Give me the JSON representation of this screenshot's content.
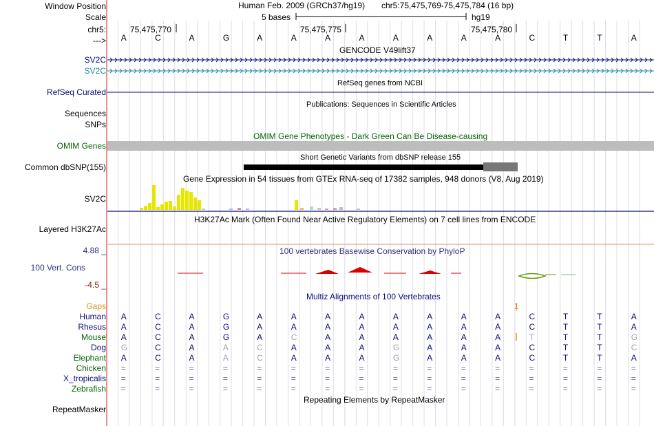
{
  "header": {
    "window_position_label": "Window Position",
    "scale_label": "Scale",
    "chrom_label": "chr5:",
    "strand_label": "--->",
    "assembly_text": "Human Feb. 2009 (GRCh37/hg19)",
    "position_text": "chr5:75,475,769-75,475,784 (16 bp)",
    "scale_text": "5 bases",
    "scale_db": "hg19",
    "ruler_ticks": [
      "75,475,770",
      "75,475,775",
      "75,475,780"
    ]
  },
  "bases": [
    "A",
    "C",
    "A",
    "G",
    "A",
    "A",
    "A",
    "A",
    "A",
    "A",
    "A",
    "A",
    "C",
    "T",
    "T",
    "A"
  ],
  "tracks": {
    "gencode": {
      "title": "GENCODE V49lift37",
      "genes": [
        "SV2C",
        "SV2C"
      ],
      "colors": [
        "#0c0c78",
        "#1a8aa8"
      ]
    },
    "refseq": {
      "title": "RefSeq genes from NCBI",
      "label": "RefSeq Curated"
    },
    "publications": {
      "title": "Publications: Sequences in Scientific Articles",
      "labels": [
        "Sequences",
        "SNPs"
      ]
    },
    "omim": {
      "title": "OMIM Gene Phenotypes - Dark Green Can Be Disease-causing",
      "label": "OMIM Genes",
      "color": "#006400"
    },
    "dbsnp": {
      "title": "Short Genetic Variants from dbSNP release 155",
      "label": "Common dbSNP(155)"
    },
    "gtex": {
      "title": "Gene Expression in 54 tissues from GTEx RNA-seq of 17382 samples, 948 donors (V8, Aug 2019)",
      "label": "SV2C"
    },
    "h3k27ac": {
      "title": "H3K27Ac Mark (Often Found Near Active Regulatory Elements) on 7 cell lines from ENCODE",
      "label": "Layered H3K27Ac"
    },
    "phylop": {
      "title": "100 vertebrates Basewise Conservation by PhyloP",
      "label": "100 Vert. Cons",
      "max": "4.88 _",
      "min": "-4.5 _"
    },
    "multiz": {
      "title": "Multiz Alignments of 100 Vertebrates",
      "gaps_label": "Gaps",
      "gap_value": "1",
      "species": [
        {
          "name": "Human",
          "seq": [
            "A",
            "C",
            "A",
            "G",
            "A",
            "A",
            "A",
            "A",
            "A",
            "A",
            "A",
            "A",
            "C",
            "T",
            "T",
            "A"
          ]
        },
        {
          "name": "Rhesus",
          "seq": [
            "A",
            "C",
            "A",
            "G",
            "A",
            "A",
            "A",
            "A",
            "A",
            "A",
            "A",
            "A",
            "C",
            "T",
            "T",
            "A"
          ]
        },
        {
          "name": "Mouse",
          "seq": [
            "A",
            "C",
            "A",
            "G",
            "A",
            "C",
            "A",
            "A",
            "A",
            "A",
            "A",
            "A",
            "T",
            "T",
            "T",
            "G"
          ]
        },
        {
          "name": "Dog",
          "seq": [
            "G",
            "C",
            "A",
            "A",
            "C",
            "A",
            "A",
            "A",
            "G",
            "A",
            "A",
            "A",
            "C",
            "T",
            "T",
            "C"
          ]
        },
        {
          "name": "Elephant",
          "seq": [
            "A",
            "C",
            "A",
            "A",
            "C",
            "A",
            "A",
            "A",
            "G",
            "A",
            "A",
            "A",
            "C",
            "T",
            "T",
            "A"
          ]
        },
        {
          "name": "Chicken",
          "seq": [
            "=",
            "=",
            "=",
            "=",
            "=",
            "=",
            "=",
            "=",
            "=",
            "=",
            "=",
            "=",
            "=",
            "=",
            "=",
            "="
          ]
        },
        {
          "name": "X_tropicalis",
          "seq": [
            "=",
            "=",
            "=",
            "=",
            "=",
            "=",
            "=",
            "=",
            "=",
            "=",
            "=",
            "=",
            "=",
            "=",
            "=",
            "="
          ]
        },
        {
          "name": "Zebrafish",
          "seq": [
            "=",
            "=",
            "=",
            "=",
            "=",
            "=",
            "=",
            "=",
            "=",
            "=",
            "=",
            "=",
            "=",
            "=",
            "=",
            "="
          ]
        }
      ]
    },
    "repeatmasker": {
      "title": "Repeating Elements by RepeatMasker",
      "label": "RepeatMasker"
    }
  }
}
